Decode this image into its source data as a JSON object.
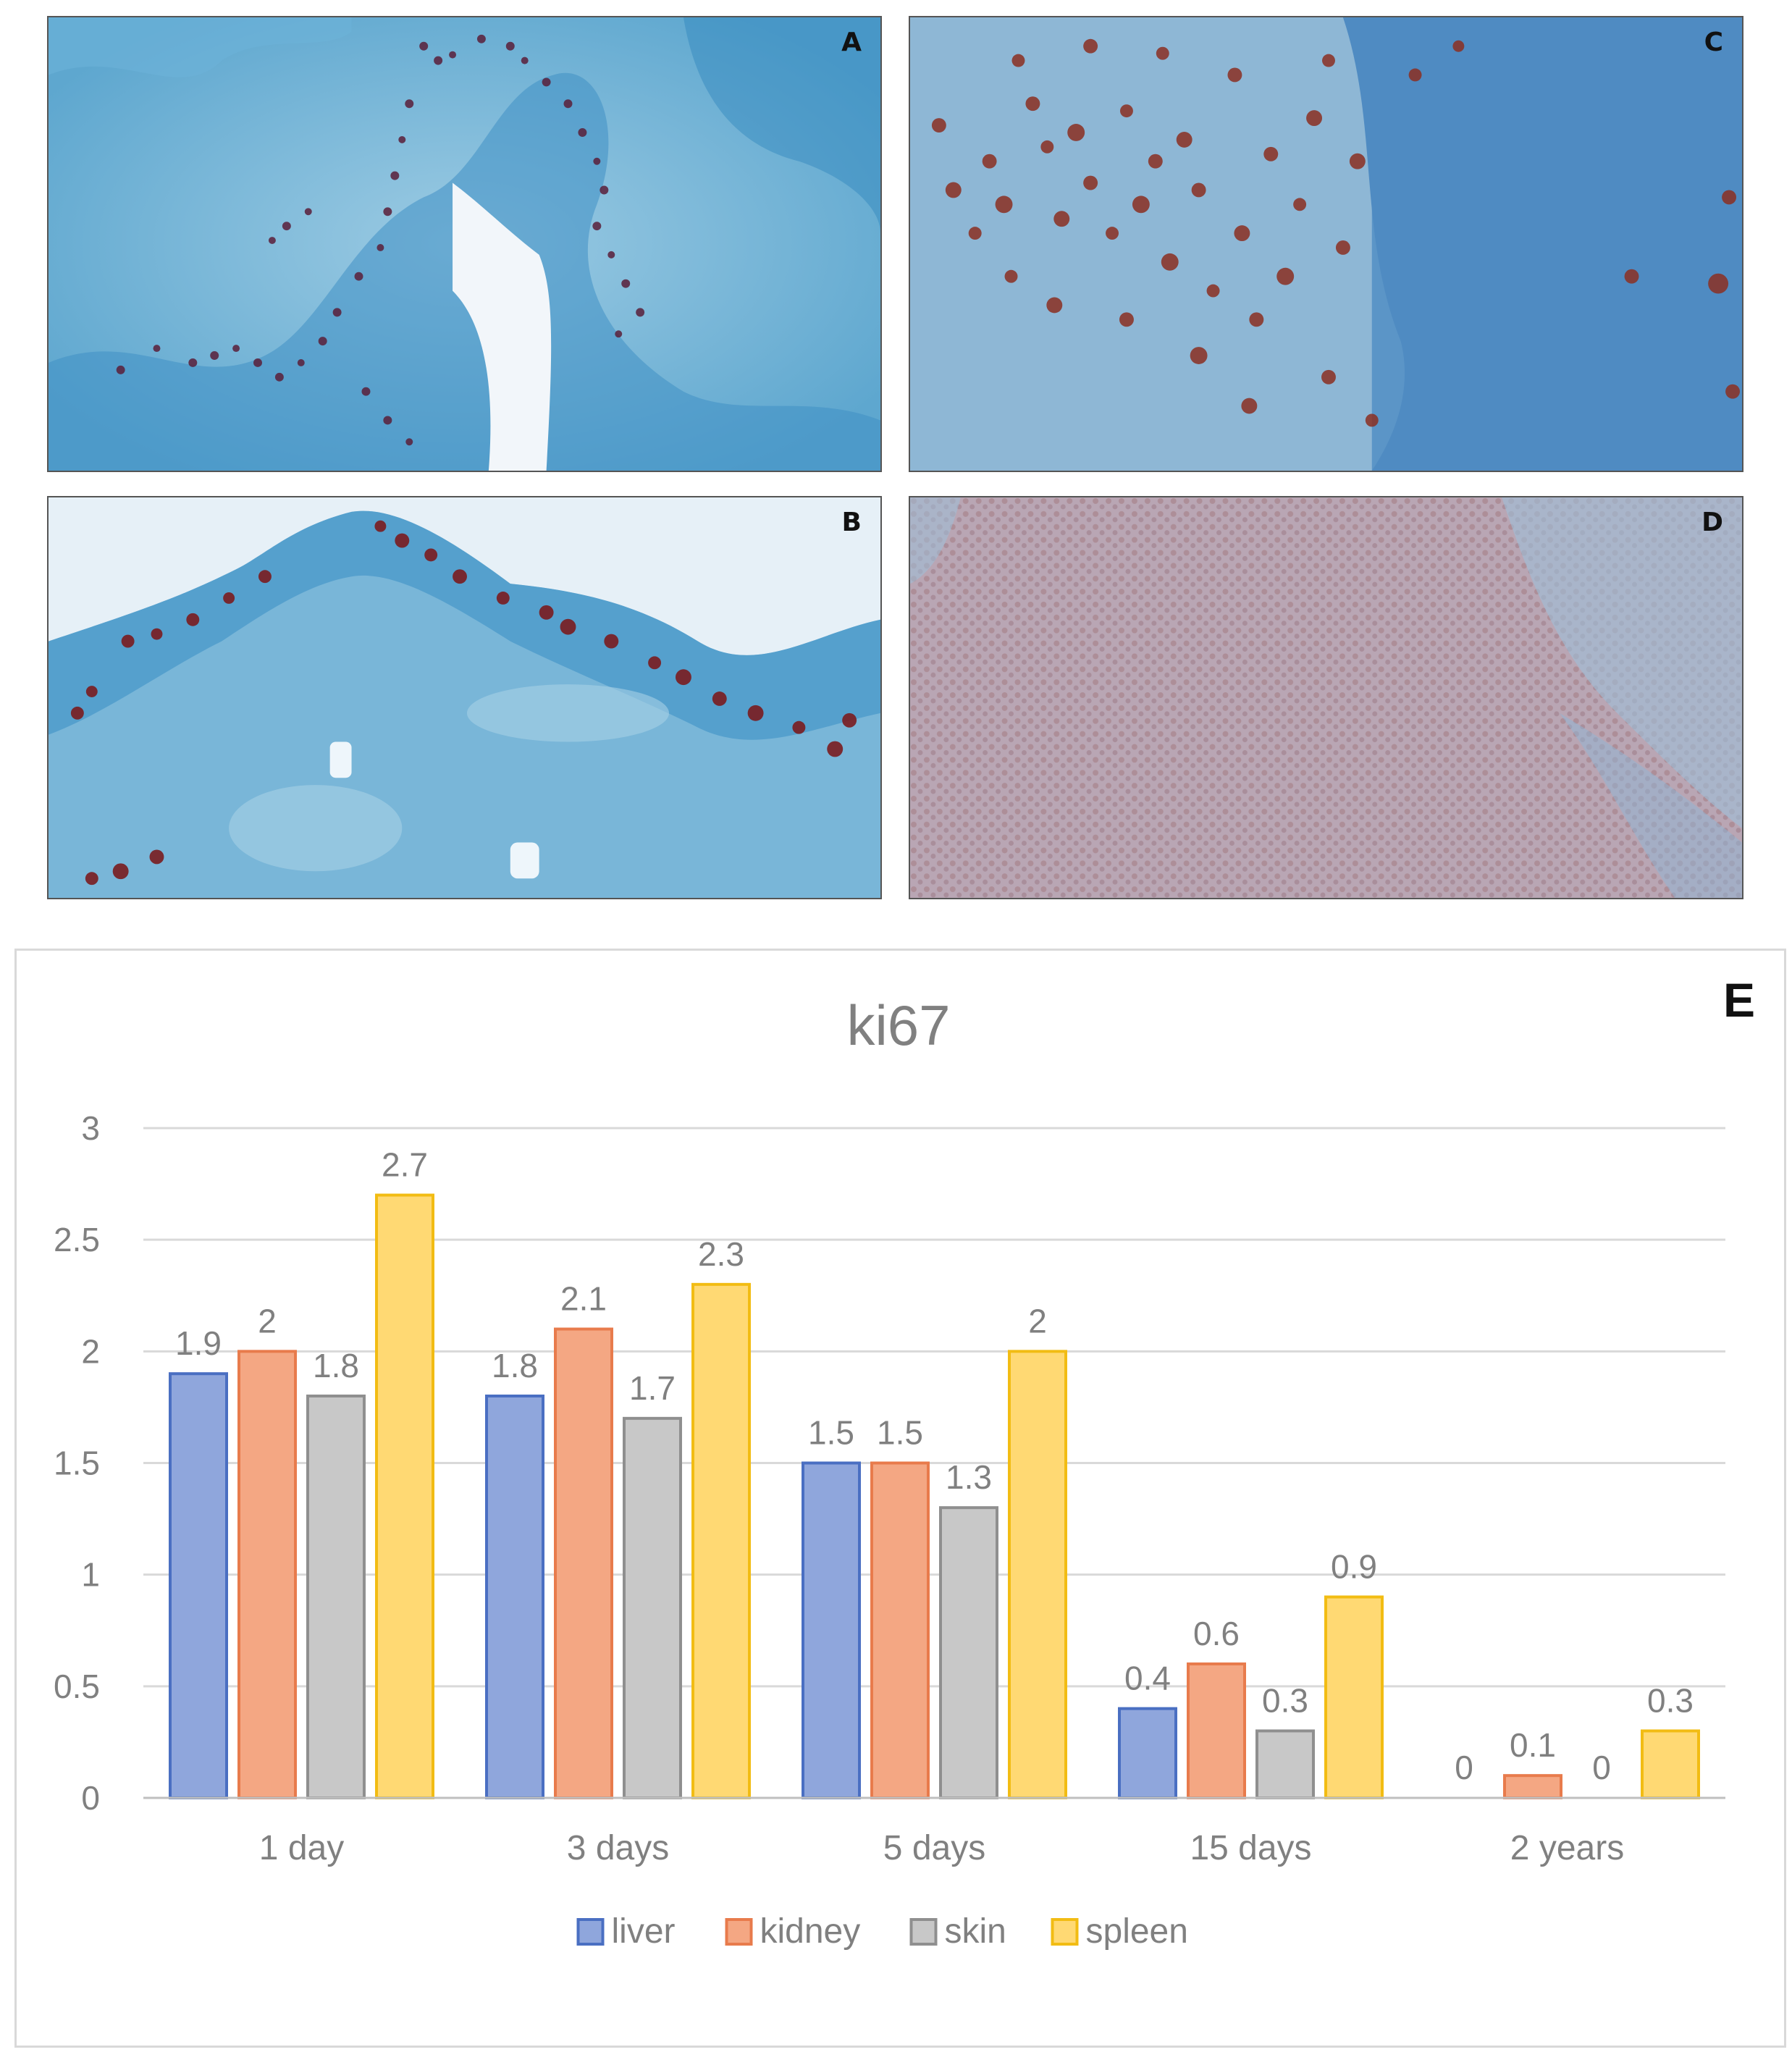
{
  "panels": [
    {
      "id": "a",
      "label": "A"
    },
    {
      "id": "c",
      "label": "C"
    },
    {
      "id": "b",
      "label": "B"
    },
    {
      "id": "d",
      "label": "D"
    }
  ],
  "panel_e_label": "E",
  "colors": {
    "liver": "#8fa6dc",
    "kidney": "#f4a783",
    "skin": "#c8c8c8",
    "spleen": "#ffd973",
    "liver_border": "#4a6fc2",
    "kidney_border": "#e87b4c",
    "skin_border": "#8f8f8f",
    "spleen_border": "#f2bc13"
  },
  "chart_data": {
    "type": "bar",
    "title": "ki67",
    "categories": [
      "1 day",
      "3 days",
      "5 days",
      "15 days",
      "2 years"
    ],
    "series": [
      {
        "name": "liver",
        "values": [
          1.9,
          1.8,
          1.5,
          0.4,
          0
        ]
      },
      {
        "name": "kidney",
        "values": [
          2,
          2.1,
          1.5,
          0.6,
          0.1
        ]
      },
      {
        "name": "skin",
        "values": [
          1.8,
          1.7,
          1.3,
          0.3,
          0
        ]
      },
      {
        "name": "spleen",
        "values": [
          2.7,
          2.3,
          2,
          0.9,
          0.3
        ]
      }
    ],
    "yticks": [
      "0",
      "0.5",
      "1",
      "1.5",
      "2",
      "2.5",
      "3"
    ],
    "ylim": [
      0,
      3
    ],
    "grid": true,
    "legend": "bottom"
  }
}
